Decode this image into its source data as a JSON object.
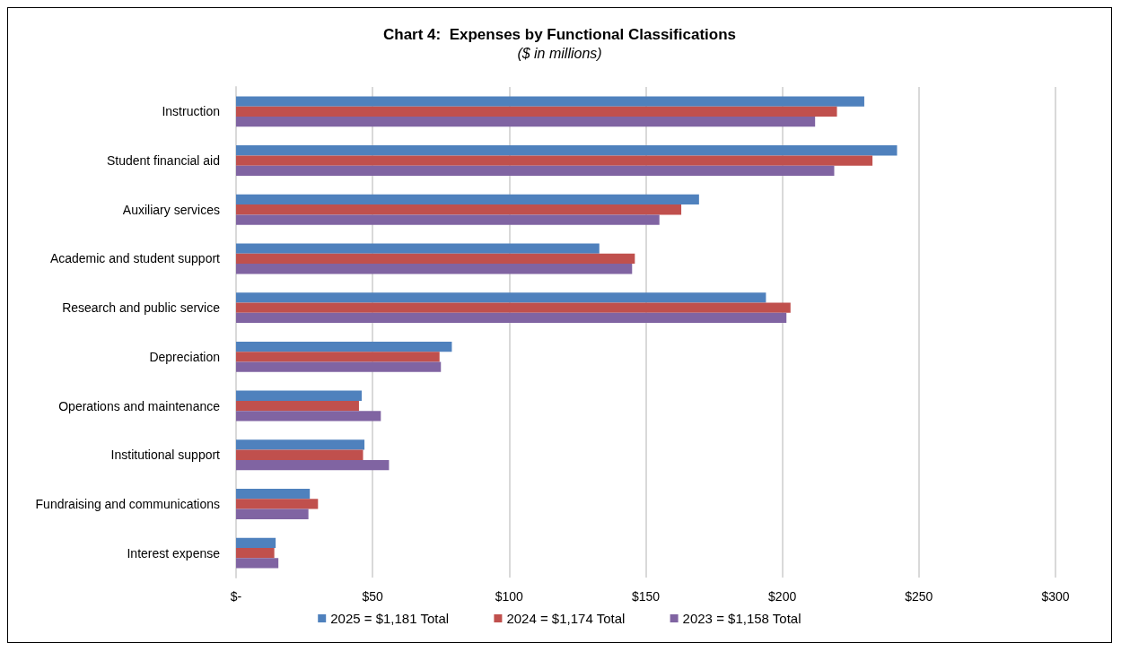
{
  "chart_data": {
    "type": "bar",
    "orientation": "horizontal",
    "title": "Chart 4:  Expenses by Functional Classifications",
    "subtitle": "($ in millions)",
    "categories": [
      "Instruction",
      "Student financial aid",
      "Auxiliary services",
      "Academic and student support",
      "Research and public service",
      "Depreciation",
      "Operations and maintenance",
      "Institutional support",
      "Fundraising and communications",
      "Interest expense"
    ],
    "series": [
      {
        "name": "2025 = $1,181 Total",
        "color": "#4f81bd",
        "values": [
          230,
          242,
          169.5,
          133,
          194,
          79,
          46,
          47,
          27,
          14.5
        ]
      },
      {
        "name": "2024 = $1,174 Total",
        "color": "#c0504d",
        "values": [
          220,
          233,
          163,
          146,
          203,
          74.5,
          45,
          46.5,
          30,
          14
        ]
      },
      {
        "name": "2023 = $1,158 Total",
        "color": "#8064a2",
        "values": [
          212,
          219,
          155,
          145,
          201.5,
          75,
          53,
          56,
          26.5,
          15.5
        ]
      }
    ],
    "xlim": [
      0,
      300
    ],
    "xticks": [
      {
        "value": 0,
        "label": "$-"
      },
      {
        "value": 50,
        "label": "$50"
      },
      {
        "value": 100,
        "label": "$100"
      },
      {
        "value": 150,
        "label": "$150"
      },
      {
        "value": 200,
        "label": "$200"
      },
      {
        "value": 250,
        "label": "$250"
      },
      {
        "value": 300,
        "label": "$300"
      }
    ],
    "grid": "x",
    "legend": "bottom"
  }
}
